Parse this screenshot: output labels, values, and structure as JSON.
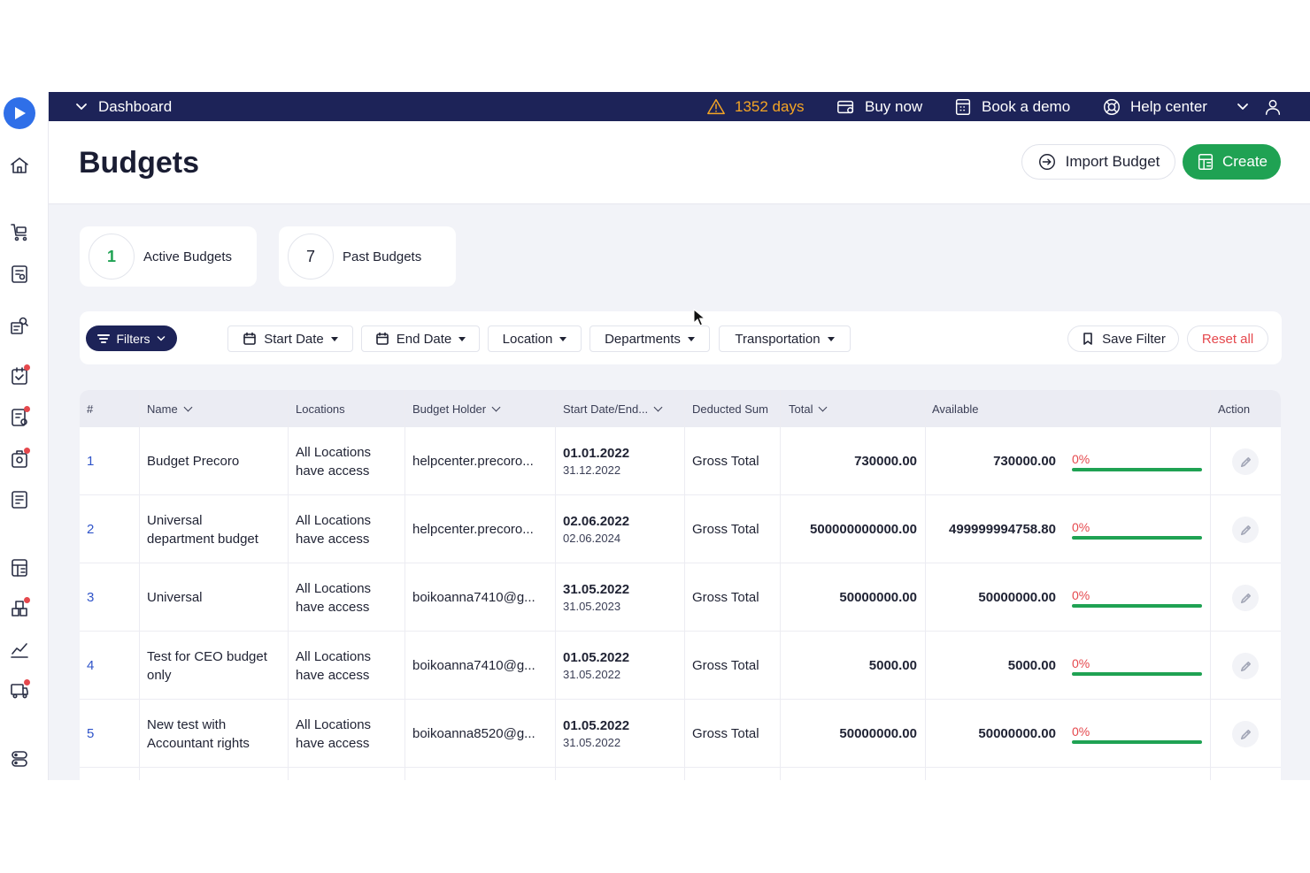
{
  "topbar": {
    "section": "Dashboard",
    "trial": "1352 days",
    "buy_now": "Buy now",
    "book_demo": "Book a demo",
    "help_center": "Help center"
  },
  "page": {
    "title": "Budgets",
    "import_label": "Import Budget",
    "create_label": "Create"
  },
  "summary": {
    "active_count": "1",
    "active_label": "Active Budgets",
    "past_count": "7",
    "past_label": "Past Budgets"
  },
  "filters": {
    "filters_label": "Filters",
    "start_date": "Start Date",
    "end_date": "End Date",
    "location": "Location",
    "departments": "Departments",
    "transportation": "Transportation",
    "save_filter": "Save Filter",
    "reset_all": "Reset all"
  },
  "table": {
    "headers": {
      "num": "#",
      "name": "Name",
      "locations": "Locations",
      "holder": "Budget Holder",
      "dates": "Start Date/End...",
      "deducted": "Deducted Sum",
      "total": "Total",
      "available": "Available",
      "action": "Action"
    },
    "rows": [
      {
        "num": "1",
        "name_1": "Budget Precoro",
        "name_2": "",
        "loc_1": "All Locations",
        "loc_2": "have access",
        "holder": "helpcenter.precoro...",
        "start": "01.01.2022",
        "end": "31.12.2022",
        "deducted": "Gross Total",
        "total": "730000.00",
        "available": "730000.00",
        "percent": "0%"
      },
      {
        "num": "2",
        "name_1": "Universal",
        "name_2": "department budget",
        "loc_1": "All Locations",
        "loc_2": "have access",
        "holder": "helpcenter.precoro...",
        "start": "02.06.2022",
        "end": "02.06.2024",
        "deducted": "Gross Total",
        "total": "500000000000.00",
        "available": "499999994758.80",
        "percent": "0%"
      },
      {
        "num": "3",
        "name_1": "Universal",
        "name_2": "",
        "loc_1": "All Locations",
        "loc_2": "have access",
        "holder": "boikoanna7410@g...",
        "start": "31.05.2022",
        "end": "31.05.2023",
        "deducted": "Gross Total",
        "total": "50000000.00",
        "available": "50000000.00",
        "percent": "0%"
      },
      {
        "num": "4",
        "name_1": "Test for CEO budget",
        "name_2": "only",
        "loc_1": "All Locations",
        "loc_2": "have access",
        "holder": "boikoanna7410@g...",
        "start": "01.05.2022",
        "end": "31.05.2022",
        "deducted": "Gross Total",
        "total": "5000.00",
        "available": "5000.00",
        "percent": "0%"
      },
      {
        "num": "5",
        "name_1": "New test with",
        "name_2": "Accountant rights",
        "loc_1": "All Locations",
        "loc_2": "have access",
        "holder": "boikoanna8520@g...",
        "start": "01.05.2022",
        "end": "31.05.2022",
        "deducted": "Gross Total",
        "total": "50000000.00",
        "available": "50000000.00",
        "percent": "0%"
      }
    ]
  },
  "colors": {
    "navy": "#1d2358",
    "green": "#1fa253",
    "red": "#e5484d",
    "warning": "#f5a524",
    "link": "#2f54c9"
  }
}
